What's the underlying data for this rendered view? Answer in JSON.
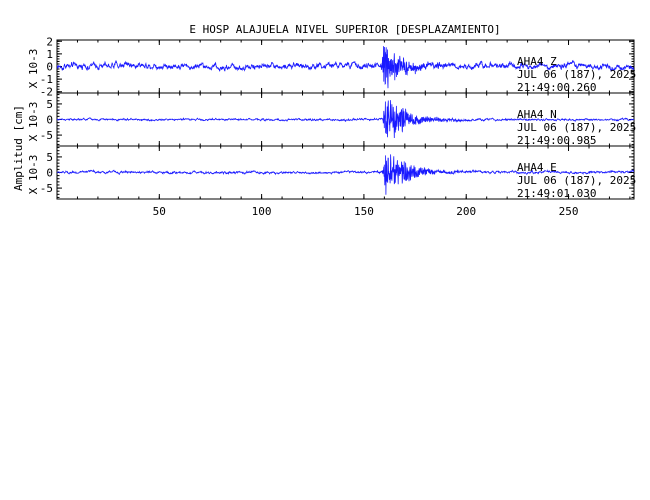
{
  "chart_data": {
    "type": "line",
    "title": "E HOSP ALAJUELA NIVEL SUPERIOR [DESPLAZAMIENTO]",
    "ylabel": "Amplitud [cm]",
    "xlabel": "",
    "xlim": [
      0,
      282
    ],
    "x_ticks": [
      50,
      100,
      150,
      200,
      250
    ],
    "trace_color": "#1a1aff",
    "panels": [
      {
        "station": "AHA4",
        "component": "Z",
        "date": "JUL 06 (187), 2025",
        "time": "21:49:00.260",
        "scale_label": "X 10-3",
        "ylim": [
          -2.1,
          2.1
        ],
        "y_ticks": [
          2,
          1,
          0,
          -1,
          -2
        ],
        "noise_amplitude": 0.45,
        "event_onset": 158,
        "event_peak": 2.0,
        "event_decay": 9
      },
      {
        "station": "AHA4",
        "component": "N",
        "date": "JUL 06 (187), 2025",
        "time": "21:49:00.985",
        "scale_label": "X 10-3",
        "ylim": [
          -8.5,
          8.5
        ],
        "y_ticks": [
          5,
          0,
          -5
        ],
        "noise_amplitude": 0.6,
        "event_onset": 159,
        "event_peak": 8.0,
        "event_decay": 10
      },
      {
        "station": "AHA4",
        "component": "E",
        "date": "JUL 06 (187), 2025",
        "time": "21:49:01.030",
        "scale_label": "X 10-3",
        "ylim": [
          -8.5,
          8.5
        ],
        "y_ticks": [
          5,
          0,
          -5
        ],
        "noise_amplitude": 0.7,
        "event_onset": 159,
        "event_peak": 8.0,
        "event_decay": 10
      }
    ]
  }
}
